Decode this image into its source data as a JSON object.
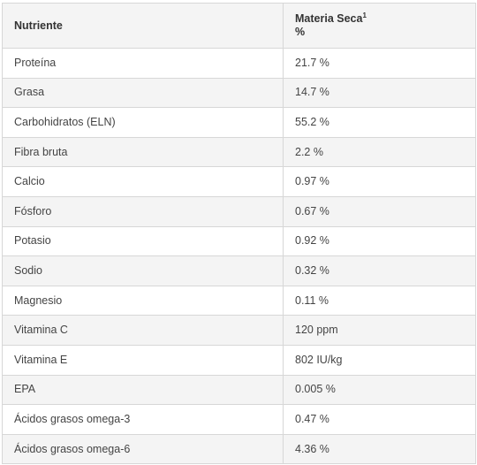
{
  "table": {
    "headers": {
      "nutrient": "Nutriente",
      "dry_matter": "Materia Seca",
      "dry_matter_footnote": "1",
      "dry_matter_unit": "%"
    },
    "rows": [
      {
        "name": "Proteína",
        "value": "21.7 %"
      },
      {
        "name": "Grasa",
        "value": "14.7 %"
      },
      {
        "name": "Carbohidratos (ELN)",
        "value": "55.2 %"
      },
      {
        "name": "Fibra bruta",
        "value": "2.2 %"
      },
      {
        "name": "Calcio",
        "value": "0.97 %"
      },
      {
        "name": "Fósforo",
        "value": "0.67 %"
      },
      {
        "name": "Potasio",
        "value": "0.92 %"
      },
      {
        "name": "Sodio",
        "value": "0.32 %"
      },
      {
        "name": "Magnesio",
        "value": "0.11 %"
      },
      {
        "name": "Vitamina C",
        "value": "120 ppm"
      },
      {
        "name": "Vitamina E",
        "value": "802 IU/kg"
      },
      {
        "name": "EPA",
        "value": "0.005 %"
      },
      {
        "name": "Ácidos grasos omega-3",
        "value": "0.47 %"
      },
      {
        "name": "Ácidos grasos omega-6",
        "value": "4.36 %"
      }
    ]
  }
}
